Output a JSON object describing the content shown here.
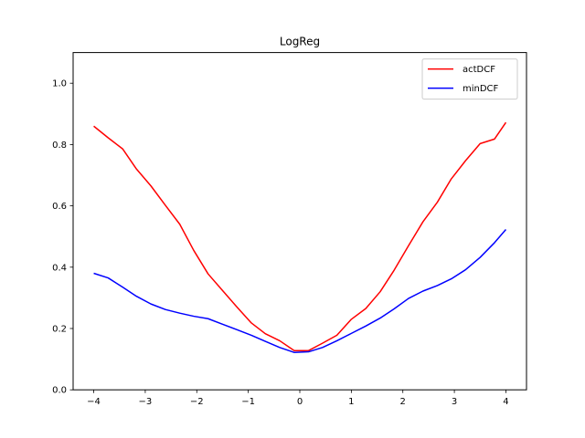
{
  "chart_data": {
    "type": "line",
    "title": "LogReg",
    "xlabel": "",
    "ylabel": "",
    "xlim": [
      -4.4,
      4.4
    ],
    "ylim": [
      0.0,
      1.1
    ],
    "xticks": [
      -4,
      -3,
      -2,
      -1,
      0,
      1,
      2,
      3,
      4
    ],
    "xtick_labels": [
      "−4",
      "−3",
      "−2",
      "−1",
      "0",
      "1",
      "2",
      "3",
      "4"
    ],
    "yticks": [
      0.0,
      0.2,
      0.4,
      0.6,
      0.8,
      1.0
    ],
    "ytick_labels": [
      "0.0",
      "0.2",
      "0.4",
      "0.6",
      "0.8",
      "1.0"
    ],
    "grid": false,
    "legend_position": "top-right",
    "x": [
      -4.0,
      -3.72,
      -3.44,
      -3.17,
      -2.89,
      -2.61,
      -2.33,
      -2.06,
      -1.78,
      -1.5,
      -1.22,
      -0.94,
      -0.67,
      -0.39,
      -0.11,
      0.17,
      0.44,
      0.72,
      1.0,
      1.28,
      1.56,
      1.83,
      2.11,
      2.39,
      2.67,
      2.94,
      3.22,
      3.5,
      3.78,
      4.0
    ],
    "series": [
      {
        "name": "actDCF",
        "color": "#ff0000",
        "values": [
          0.86,
          0.822,
          0.786,
          0.72,
          0.665,
          0.602,
          0.54,
          0.455,
          0.378,
          0.324,
          0.27,
          0.218,
          0.183,
          0.16,
          0.128,
          0.128,
          0.152,
          0.178,
          0.23,
          0.265,
          0.32,
          0.39,
          0.47,
          0.548,
          0.612,
          0.688,
          0.748,
          0.803,
          0.818,
          0.872
        ]
      },
      {
        "name": "minDCF",
        "color": "#0000ff",
        "values": [
          0.38,
          0.365,
          0.335,
          0.305,
          0.28,
          0.262,
          0.25,
          0.24,
          0.232,
          0.214,
          0.196,
          0.178,
          0.158,
          0.138,
          0.122,
          0.124,
          0.138,
          0.16,
          0.184,
          0.208,
          0.234,
          0.264,
          0.298,
          0.322,
          0.34,
          0.362,
          0.392,
          0.432,
          0.48,
          0.523
        ]
      }
    ]
  }
}
